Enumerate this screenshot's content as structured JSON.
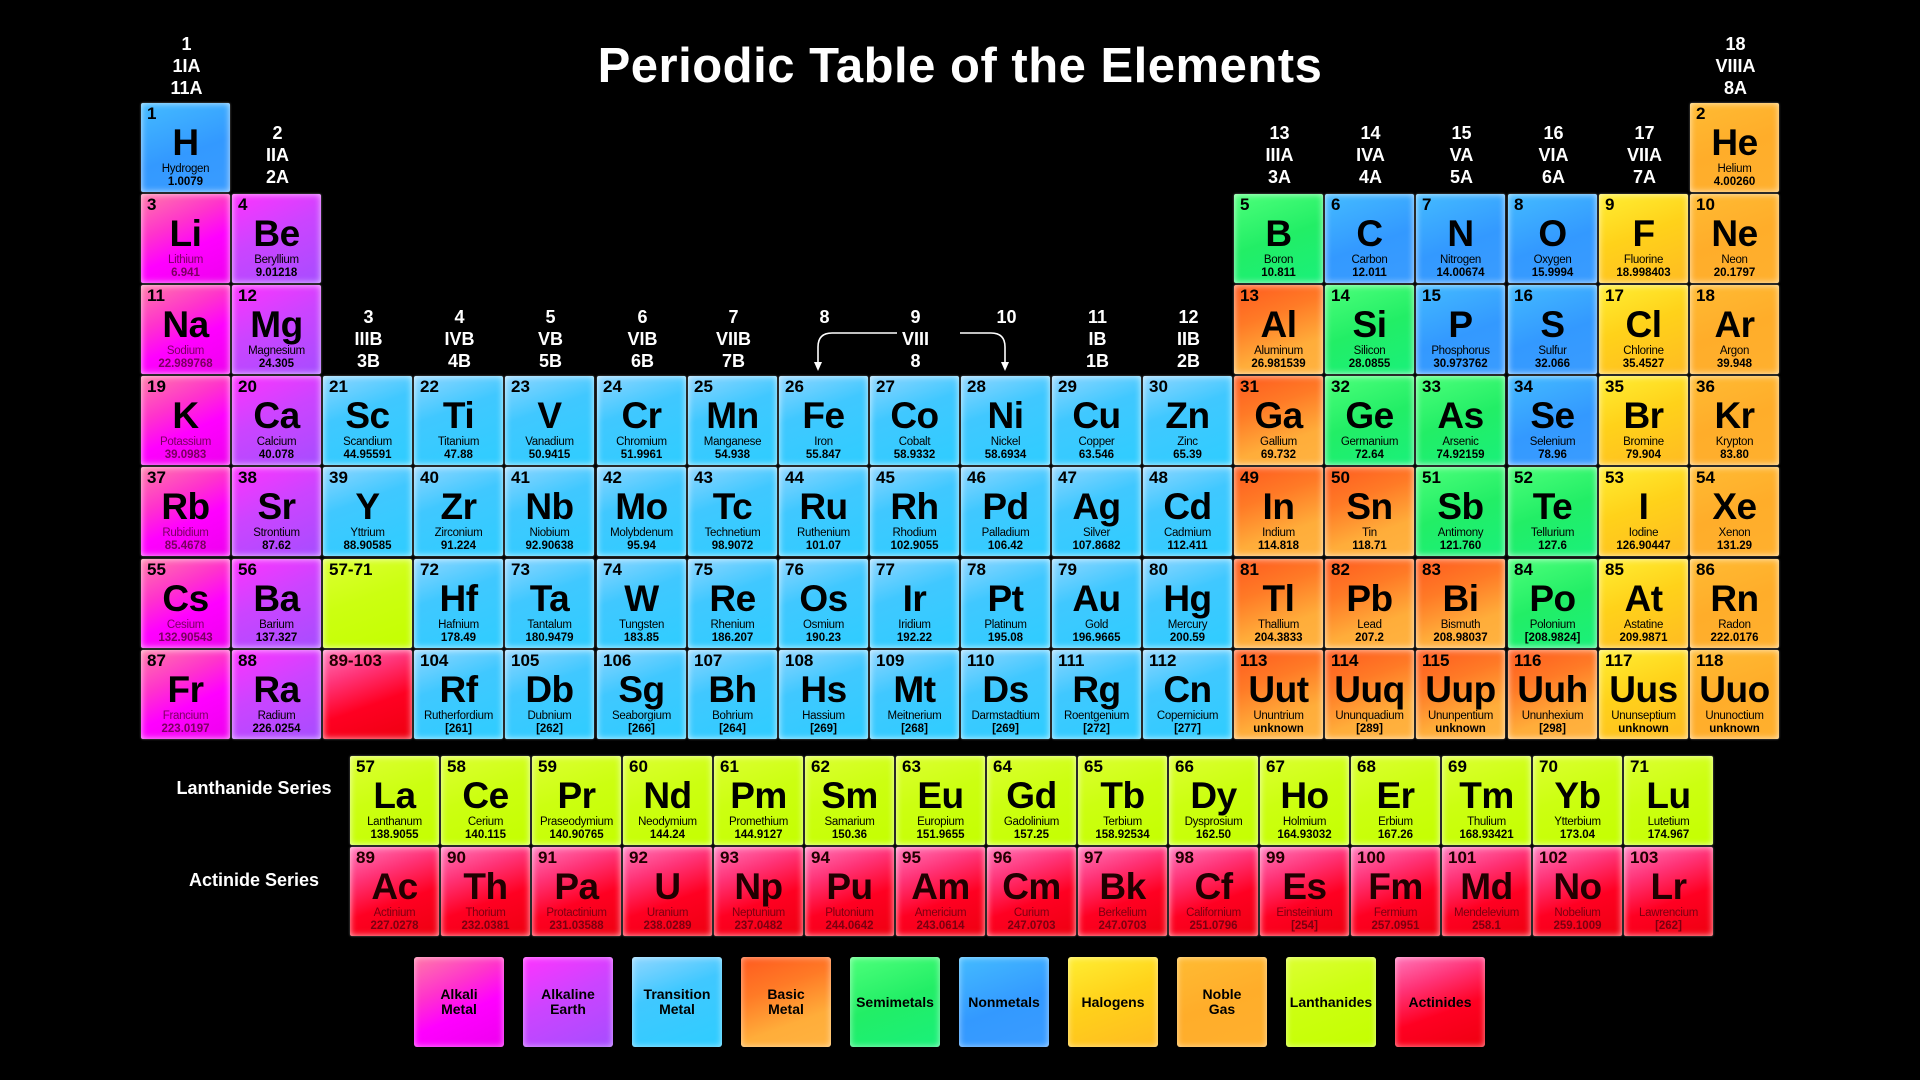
{
  "title": "Periodic Table of the Elements",
  "colors": {
    "a": "#ff00ff",
    "e": "#a64dff",
    "t": "#33ccff",
    "b": "#ff7a26",
    "s": "#22ee66",
    "n": "#3399ff",
    "h": "#ffcc00",
    "g": "#ffad2a",
    "l": "#ccff00",
    "c": "#ff0022"
  },
  "group_headers": [
    {
      "group": 1,
      "lines": [
        "1",
        "1IA",
        "11A"
      ]
    },
    {
      "group": 2,
      "lines": [
        "2",
        "IIA",
        "2A"
      ]
    },
    {
      "group": 3,
      "lines": [
        "3",
        "IIIB",
        "3B"
      ]
    },
    {
      "group": 4,
      "lines": [
        "4",
        "IVB",
        "4B"
      ]
    },
    {
      "group": 5,
      "lines": [
        "5",
        "VB",
        "5B"
      ]
    },
    {
      "group": 6,
      "lines": [
        "6",
        "VIB",
        "6B"
      ]
    },
    {
      "group": 7,
      "lines": [
        "7",
        "VIIB",
        "7B"
      ]
    },
    {
      "group": 8,
      "lines": [
        "8",
        "",
        ""
      ]
    },
    {
      "group": 9,
      "lines": [
        "9",
        "VIII",
        "8"
      ]
    },
    {
      "group": 10,
      "lines": [
        "10",
        "",
        ""
      ]
    },
    {
      "group": 11,
      "lines": [
        "11",
        "IB",
        "1B"
      ]
    },
    {
      "group": 12,
      "lines": [
        "12",
        "IIB",
        "2B"
      ]
    },
    {
      "group": 13,
      "lines": [
        "13",
        "IIIA",
        "3A"
      ]
    },
    {
      "group": 14,
      "lines": [
        "14",
        "IVA",
        "4A"
      ]
    },
    {
      "group": 15,
      "lines": [
        "15",
        "VA",
        "5A"
      ]
    },
    {
      "group": 16,
      "lines": [
        "16",
        "VIA",
        "6A"
      ]
    },
    {
      "group": 17,
      "lines": [
        "17",
        "VIIA",
        "7A"
      ]
    },
    {
      "group": 18,
      "lines": [
        "18",
        "VIIIA",
        "8A"
      ]
    }
  ],
  "elements": [
    {
      "n": "1",
      "s": "H",
      "name": "Hydrogen",
      "w": "1.0079",
      "cat": "n",
      "g": 1,
      "p": 1
    },
    {
      "n": "2",
      "s": "He",
      "name": "Helium",
      "w": "4.00260",
      "cat": "g",
      "g": 18,
      "p": 1
    },
    {
      "n": "3",
      "s": "Li",
      "name": "Lithium",
      "w": "6.941",
      "cat": "a",
      "g": 1,
      "p": 2
    },
    {
      "n": "4",
      "s": "Be",
      "name": "Beryllium",
      "w": "9.01218",
      "cat": "e",
      "g": 2,
      "p": 2
    },
    {
      "n": "5",
      "s": "B",
      "name": "Boron",
      "w": "10.811",
      "cat": "s",
      "g": 13,
      "p": 2
    },
    {
      "n": "6",
      "s": "C",
      "name": "Carbon",
      "w": "12.011",
      "cat": "n",
      "g": 14,
      "p": 2
    },
    {
      "n": "7",
      "s": "N",
      "name": "Nitrogen",
      "w": "14.00674",
      "cat": "n",
      "g": 15,
      "p": 2
    },
    {
      "n": "8",
      "s": "O",
      "name": "Oxygen",
      "w": "15.9994",
      "cat": "n",
      "g": 16,
      "p": 2
    },
    {
      "n": "9",
      "s": "F",
      "name": "Fluorine",
      "w": "18.998403",
      "cat": "h",
      "g": 17,
      "p": 2
    },
    {
      "n": "10",
      "s": "Ne",
      "name": "Neon",
      "w": "20.1797",
      "cat": "g",
      "g": 18,
      "p": 2
    },
    {
      "n": "11",
      "s": "Na",
      "name": "Sodium",
      "w": "22.989768",
      "cat": "a",
      "g": 1,
      "p": 3
    },
    {
      "n": "12",
      "s": "Mg",
      "name": "Magnesium",
      "w": "24.305",
      "cat": "e",
      "g": 2,
      "p": 3
    },
    {
      "n": "13",
      "s": "Al",
      "name": "Aluminum",
      "w": "26.981539",
      "cat": "b",
      "g": 13,
      "p": 3
    },
    {
      "n": "14",
      "s": "Si",
      "name": "Silicon",
      "w": "28.0855",
      "cat": "s",
      "g": 14,
      "p": 3
    },
    {
      "n": "15",
      "s": "P",
      "name": "Phosphorus",
      "w": "30.973762",
      "cat": "n",
      "g": 15,
      "p": 3
    },
    {
      "n": "16",
      "s": "S",
      "name": "Sulfur",
      "w": "32.066",
      "cat": "n",
      "g": 16,
      "p": 3
    },
    {
      "n": "17",
      "s": "Cl",
      "name": "Chlorine",
      "w": "35.4527",
      "cat": "h",
      "g": 17,
      "p": 3
    },
    {
      "n": "18",
      "s": "Ar",
      "name": "Argon",
      "w": "39.948",
      "cat": "g",
      "g": 18,
      "p": 3
    },
    {
      "n": "19",
      "s": "K",
      "name": "Potassium",
      "w": "39.0983",
      "cat": "a",
      "g": 1,
      "p": 4
    },
    {
      "n": "20",
      "s": "Ca",
      "name": "Calcium",
      "w": "40.078",
      "cat": "e",
      "g": 2,
      "p": 4
    },
    {
      "n": "21",
      "s": "Sc",
      "name": "Scandium",
      "w": "44.95591",
      "cat": "t",
      "g": 3,
      "p": 4
    },
    {
      "n": "22",
      "s": "Ti",
      "name": "Titanium",
      "w": "47.88",
      "cat": "t",
      "g": 4,
      "p": 4
    },
    {
      "n": "23",
      "s": "V",
      "name": "Vanadium",
      "w": "50.9415",
      "cat": "t",
      "g": 5,
      "p": 4
    },
    {
      "n": "24",
      "s": "Cr",
      "name": "Chromium",
      "w": "51.9961",
      "cat": "t",
      "g": 6,
      "p": 4
    },
    {
      "n": "25",
      "s": "Mn",
      "name": "Manganese",
      "w": "54.938",
      "cat": "t",
      "g": 7,
      "p": 4
    },
    {
      "n": "26",
      "s": "Fe",
      "name": "Iron",
      "w": "55.847",
      "cat": "t",
      "g": 8,
      "p": 4
    },
    {
      "n": "27",
      "s": "Co",
      "name": "Cobalt",
      "w": "58.9332",
      "cat": "t",
      "g": 9,
      "p": 4
    },
    {
      "n": "28",
      "s": "Ni",
      "name": "Nickel",
      "w": "58.6934",
      "cat": "t",
      "g": 10,
      "p": 4
    },
    {
      "n": "29",
      "s": "Cu",
      "name": "Copper",
      "w": "63.546",
      "cat": "t",
      "g": 11,
      "p": 4
    },
    {
      "n": "30",
      "s": "Zn",
      "name": "Zinc",
      "w": "65.39",
      "cat": "t",
      "g": 12,
      "p": 4
    },
    {
      "n": "31",
      "s": "Ga",
      "name": "Gallium",
      "w": "69.732",
      "cat": "b",
      "g": 13,
      "p": 4
    },
    {
      "n": "32",
      "s": "Ge",
      "name": "Germanium",
      "w": "72.64",
      "cat": "s",
      "g": 14,
      "p": 4
    },
    {
      "n": "33",
      "s": "As",
      "name": "Arsenic",
      "w": "74.92159",
      "cat": "s",
      "g": 15,
      "p": 4
    },
    {
      "n": "34",
      "s": "Se",
      "name": "Selenium",
      "w": "78.96",
      "cat": "n",
      "g": 16,
      "p": 4
    },
    {
      "n": "35",
      "s": "Br",
      "name": "Bromine",
      "w": "79.904",
      "cat": "h",
      "g": 17,
      "p": 4
    },
    {
      "n": "36",
      "s": "Kr",
      "name": "Krypton",
      "w": "83.80",
      "cat": "g",
      "g": 18,
      "p": 4
    },
    {
      "n": "37",
      "s": "Rb",
      "name": "Rubidium",
      "w": "85.4678",
      "cat": "a",
      "g": 1,
      "p": 5
    },
    {
      "n": "38",
      "s": "Sr",
      "name": "Strontium",
      "w": "87.62",
      "cat": "e",
      "g": 2,
      "p": 5
    },
    {
      "n": "39",
      "s": "Y",
      "name": "Yttrium",
      "w": "88.90585",
      "cat": "t",
      "g": 3,
      "p": 5
    },
    {
      "n": "40",
      "s": "Zr",
      "name": "Zirconium",
      "w": "91.224",
      "cat": "t",
      "g": 4,
      "p": 5
    },
    {
      "n": "41",
      "s": "Nb",
      "name": "Niobium",
      "w": "92.90638",
      "cat": "t",
      "g": 5,
      "p": 5
    },
    {
      "n": "42",
      "s": "Mo",
      "name": "Molybdenum",
      "w": "95.94",
      "cat": "t",
      "g": 6,
      "p": 5
    },
    {
      "n": "43",
      "s": "Tc",
      "name": "Technetium",
      "w": "98.9072",
      "cat": "t",
      "g": 7,
      "p": 5
    },
    {
      "n": "44",
      "s": "Ru",
      "name": "Ruthenium",
      "w": "101.07",
      "cat": "t",
      "g": 8,
      "p": 5
    },
    {
      "n": "45",
      "s": "Rh",
      "name": "Rhodium",
      "w": "102.9055",
      "cat": "t",
      "g": 9,
      "p": 5
    },
    {
      "n": "46",
      "s": "Pd",
      "name": "Palladium",
      "w": "106.42",
      "cat": "t",
      "g": 10,
      "p": 5
    },
    {
      "n": "47",
      "s": "Ag",
      "name": "Silver",
      "w": "107.8682",
      "cat": "t",
      "g": 11,
      "p": 5
    },
    {
      "n": "48",
      "s": "Cd",
      "name": "Cadmium",
      "w": "112.411",
      "cat": "t",
      "g": 12,
      "p": 5
    },
    {
      "n": "49",
      "s": "In",
      "name": "Indium",
      "w": "114.818",
      "cat": "b",
      "g": 13,
      "p": 5
    },
    {
      "n": "50",
      "s": "Sn",
      "name": "Tin",
      "w": "118.71",
      "cat": "b",
      "g": 14,
      "p": 5
    },
    {
      "n": "51",
      "s": "Sb",
      "name": "Antimony",
      "w": "121.760",
      "cat": "s",
      "g": 15,
      "p": 5
    },
    {
      "n": "52",
      "s": "Te",
      "name": "Tellurium",
      "w": "127.6",
      "cat": "s",
      "g": 16,
      "p": 5
    },
    {
      "n": "53",
      "s": "I",
      "name": "Iodine",
      "w": "126.90447",
      "cat": "h",
      "g": 17,
      "p": 5
    },
    {
      "n": "54",
      "s": "Xe",
      "name": "Xenon",
      "w": "131.29",
      "cat": "g",
      "g": 18,
      "p": 5
    },
    {
      "n": "55",
      "s": "Cs",
      "name": "Cesium",
      "w": "132.90543",
      "cat": "a",
      "g": 1,
      "p": 6
    },
    {
      "n": "56",
      "s": "Ba",
      "name": "Barium",
      "w": "137.327",
      "cat": "e",
      "g": 2,
      "p": 6
    },
    {
      "n": "57-71",
      "s": "",
      "name": "",
      "w": "",
      "cat": "l",
      "g": 3,
      "p": 6
    },
    {
      "n": "72",
      "s": "Hf",
      "name": "Hafnium",
      "w": "178.49",
      "cat": "t",
      "g": 4,
      "p": 6
    },
    {
      "n": "73",
      "s": "Ta",
      "name": "Tantalum",
      "w": "180.9479",
      "cat": "t",
      "g": 5,
      "p": 6
    },
    {
      "n": "74",
      "s": "W",
      "name": "Tungsten",
      "w": "183.85",
      "cat": "t",
      "g": 6,
      "p": 6
    },
    {
      "n": "75",
      "s": "Re",
      "name": "Rhenium",
      "w": "186.207",
      "cat": "t",
      "g": 7,
      "p": 6
    },
    {
      "n": "76",
      "s": "Os",
      "name": "Osmium",
      "w": "190.23",
      "cat": "t",
      "g": 8,
      "p": 6
    },
    {
      "n": "77",
      "s": "Ir",
      "name": "Iridium",
      "w": "192.22",
      "cat": "t",
      "g": 9,
      "p": 6
    },
    {
      "n": "78",
      "s": "Pt",
      "name": "Platinum",
      "w": "195.08",
      "cat": "t",
      "g": 10,
      "p": 6
    },
    {
      "n": "79",
      "s": "Au",
      "name": "Gold",
      "w": "196.9665",
      "cat": "t",
      "g": 11,
      "p": 6
    },
    {
      "n": "80",
      "s": "Hg",
      "name": "Mercury",
      "w": "200.59",
      "cat": "t",
      "g": 12,
      "p": 6
    },
    {
      "n": "81",
      "s": "Tl",
      "name": "Thallium",
      "w": "204.3833",
      "cat": "b",
      "g": 13,
      "p": 6
    },
    {
      "n": "82",
      "s": "Pb",
      "name": "Lead",
      "w": "207.2",
      "cat": "b",
      "g": 14,
      "p": 6
    },
    {
      "n": "83",
      "s": "Bi",
      "name": "Bismuth",
      "w": "208.98037",
      "cat": "b",
      "g": 15,
      "p": 6
    },
    {
      "n": "84",
      "s": "Po",
      "name": "Polonium",
      "w": "[208.9824]",
      "cat": "s",
      "g": 16,
      "p": 6
    },
    {
      "n": "85",
      "s": "At",
      "name": "Astatine",
      "w": "209.9871",
      "cat": "h",
      "g": 17,
      "p": 6
    },
    {
      "n": "86",
      "s": "Rn",
      "name": "Radon",
      "w": "222.0176",
      "cat": "g",
      "g": 18,
      "p": 6
    },
    {
      "n": "87",
      "s": "Fr",
      "name": "Francium",
      "w": "223.0197",
      "cat": "a",
      "g": 1,
      "p": 7
    },
    {
      "n": "88",
      "s": "Ra",
      "name": "Radium",
      "w": "226.0254",
      "cat": "e",
      "g": 2,
      "p": 7
    },
    {
      "n": "89-103",
      "s": "",
      "name": "",
      "w": "",
      "cat": "c",
      "g": 3,
      "p": 7
    },
    {
      "n": "104",
      "s": "Rf",
      "name": "Rutherfordium",
      "w": "[261]",
      "cat": "t",
      "g": 4,
      "p": 7
    },
    {
      "n": "105",
      "s": "Db",
      "name": "Dubnium",
      "w": "[262]",
      "cat": "t",
      "g": 5,
      "p": 7
    },
    {
      "n": "106",
      "s": "Sg",
      "name": "Seaborgium",
      "w": "[266]",
      "cat": "t",
      "g": 6,
      "p": 7
    },
    {
      "n": "107",
      "s": "Bh",
      "name": "Bohrium",
      "w": "[264]",
      "cat": "t",
      "g": 7,
      "p": 7
    },
    {
      "n": "108",
      "s": "Hs",
      "name": "Hassium",
      "w": "[269]",
      "cat": "t",
      "g": 8,
      "p": 7
    },
    {
      "n": "109",
      "s": "Mt",
      "name": "Meitnerium",
      "w": "[268]",
      "cat": "t",
      "g": 9,
      "p": 7
    },
    {
      "n": "110",
      "s": "Ds",
      "name": "Darmstadtium",
      "w": "[269]",
      "cat": "t",
      "g": 10,
      "p": 7
    },
    {
      "n": "111",
      "s": "Rg",
      "name": "Roentgenium",
      "w": "[272]",
      "cat": "t",
      "g": 11,
      "p": 7
    },
    {
      "n": "112",
      "s": "Cn",
      "name": "Copernicium",
      "w": "[277]",
      "cat": "t",
      "g": 12,
      "p": 7
    },
    {
      "n": "113",
      "s": "Uut",
      "name": "Ununtrium",
      "w": "unknown",
      "cat": "b",
      "g": 13,
      "p": 7
    },
    {
      "n": "114",
      "s": "Uuq",
      "name": "Ununquadium",
      "w": "[289]",
      "cat": "b",
      "g": 14,
      "p": 7
    },
    {
      "n": "115",
      "s": "Uup",
      "name": "Ununpentium",
      "w": "unknown",
      "cat": "b",
      "g": 15,
      "p": 7
    },
    {
      "n": "116",
      "s": "Uuh",
      "name": "Ununhexium",
      "w": "[298]",
      "cat": "b",
      "g": 16,
      "p": 7
    },
    {
      "n": "117",
      "s": "Uus",
      "name": "Ununseptium",
      "w": "unknown",
      "cat": "h",
      "g": 17,
      "p": 7
    },
    {
      "n": "118",
      "s": "Uuo",
      "name": "Ununoctium",
      "w": "unknown",
      "cat": "g",
      "g": 18,
      "p": 7
    }
  ],
  "lanthanide_label": "Lanthanide Series",
  "actinide_label": "Actinide Series",
  "lanthanides": [
    {
      "n": "57",
      "s": "La",
      "name": "Lanthanum",
      "w": "138.9055"
    },
    {
      "n": "58",
      "s": "Ce",
      "name": "Cerium",
      "w": "140.115"
    },
    {
      "n": "59",
      "s": "Pr",
      "name": "Praseodymium",
      "w": "140.90765"
    },
    {
      "n": "60",
      "s": "Nd",
      "name": "Neodymium",
      "w": "144.24"
    },
    {
      "n": "61",
      "s": "Pm",
      "name": "Promethium",
      "w": "144.9127"
    },
    {
      "n": "62",
      "s": "Sm",
      "name": "Samarium",
      "w": "150.36"
    },
    {
      "n": "63",
      "s": "Eu",
      "name": "Europium",
      "w": "151.9655"
    },
    {
      "n": "64",
      "s": "Gd",
      "name": "Gadolinium",
      "w": "157.25"
    },
    {
      "n": "65",
      "s": "Tb",
      "name": "Terbium",
      "w": "158.92534"
    },
    {
      "n": "66",
      "s": "Dy",
      "name": "Dysprosium",
      "w": "162.50"
    },
    {
      "n": "67",
      "s": "Ho",
      "name": "Holmium",
      "w": "164.93032"
    },
    {
      "n": "68",
      "s": "Er",
      "name": "Erbium",
      "w": "167.26"
    },
    {
      "n": "69",
      "s": "Tm",
      "name": "Thulium",
      "w": "168.93421"
    },
    {
      "n": "70",
      "s": "Yb",
      "name": "Ytterbium",
      "w": "173.04"
    },
    {
      "n": "71",
      "s": "Lu",
      "name": "Lutetium",
      "w": "174.967"
    }
  ],
  "actinides": [
    {
      "n": "89",
      "s": "Ac",
      "name": "Actinium",
      "w": "227.0278"
    },
    {
      "n": "90",
      "s": "Th",
      "name": "Thorium",
      "w": "232.0381"
    },
    {
      "n": "91",
      "s": "Pa",
      "name": "Protactinium",
      "w": "231.03588"
    },
    {
      "n": "92",
      "s": "U",
      "name": "Uranium",
      "w": "238.0289"
    },
    {
      "n": "93",
      "s": "Np",
      "name": "Neptunium",
      "w": "237.0482"
    },
    {
      "n": "94",
      "s": "Pu",
      "name": "Plutonium",
      "w": "244.0642"
    },
    {
      "n": "95",
      "s": "Am",
      "name": "Americium",
      "w": "243.0614"
    },
    {
      "n": "96",
      "s": "Cm",
      "name": "Curium",
      "w": "247.0703"
    },
    {
      "n": "97",
      "s": "Bk",
      "name": "Berkelium",
      "w": "247.0703"
    },
    {
      "n": "98",
      "s": "Cf",
      "name": "Californium",
      "w": "251.0796"
    },
    {
      "n": "99",
      "s": "Es",
      "name": "Einsteinium",
      "w": "[254]"
    },
    {
      "n": "100",
      "s": "Fm",
      "name": "Fermium",
      "w": "257.0951"
    },
    {
      "n": "101",
      "s": "Md",
      "name": "Mendelevium",
      "w": "258.1"
    },
    {
      "n": "102",
      "s": "No",
      "name": "Nobelium",
      "w": "259.1009"
    },
    {
      "n": "103",
      "s": "Lr",
      "name": "Lawrencium",
      "w": "[262]"
    }
  ],
  "legend": [
    {
      "cat": "a",
      "lines": [
        "Alkali",
        "Metal"
      ]
    },
    {
      "cat": "e",
      "lines": [
        "Alkaline",
        "Earth"
      ]
    },
    {
      "cat": "t",
      "lines": [
        "Transition",
        "Metal"
      ]
    },
    {
      "cat": "b",
      "lines": [
        "Basic",
        "Metal"
      ]
    },
    {
      "cat": "s",
      "lines": [
        "Semimetals"
      ]
    },
    {
      "cat": "n",
      "lines": [
        "Nonmetals"
      ]
    },
    {
      "cat": "h",
      "lines": [
        "Halogens"
      ]
    },
    {
      "cat": "g",
      "lines": [
        "Noble",
        "Gas"
      ]
    },
    {
      "cat": "l",
      "lines": [
        "Lanthanides"
      ]
    },
    {
      "cat": "c",
      "lines": [
        "Actinides"
      ]
    }
  ]
}
